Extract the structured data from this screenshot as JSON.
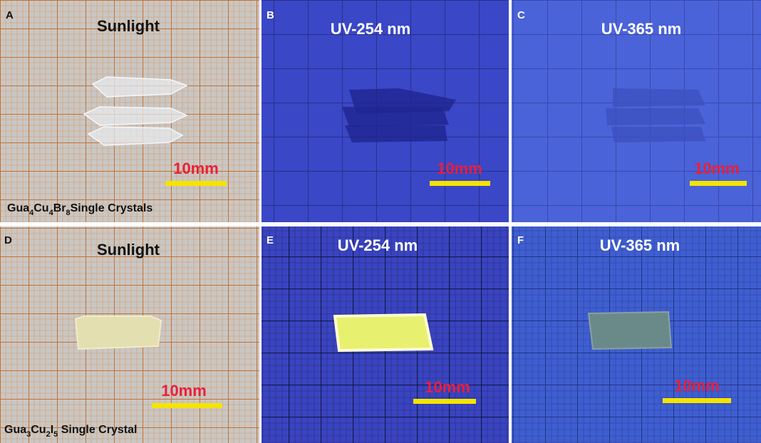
{
  "panels": [
    {
      "label": "A",
      "title": "Sunlight",
      "scale": "10mm",
      "caption": {
        "parts": [
          "Gua",
          "4",
          "Cu",
          "4",
          "Br",
          "8",
          "Single Crystals"
        ]
      }
    },
    {
      "label": "B",
      "title": "UV-254 nm",
      "scale": "10mm"
    },
    {
      "label": "C",
      "title": "UV-365 nm",
      "scale": "10mm"
    },
    {
      "label": "D",
      "title": "Sunlight",
      "scale": "10mm",
      "caption": {
        "parts": [
          "Gua",
          "3",
          "Cu",
          "2",
          "I",
          "5",
          " Single Crystal"
        ]
      }
    },
    {
      "label": "E",
      "title": "UV-254 nm",
      "scale": "10mm"
    },
    {
      "label": "F",
      "title": "UV-365 nm",
      "scale": "10mm"
    }
  ]
}
